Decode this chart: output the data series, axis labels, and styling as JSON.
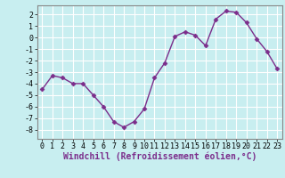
{
  "x": [
    0,
    1,
    2,
    3,
    4,
    5,
    6,
    7,
    8,
    9,
    10,
    11,
    12,
    13,
    14,
    15,
    16,
    17,
    18,
    19,
    20,
    21,
    22,
    23
  ],
  "y": [
    -4.5,
    -3.3,
    -3.5,
    -4.0,
    -4.0,
    -5.0,
    -6.0,
    -7.3,
    -7.8,
    -7.3,
    -6.2,
    -3.5,
    -2.2,
    0.1,
    0.5,
    0.2,
    -0.7,
    1.6,
    2.3,
    2.2,
    1.3,
    -0.1,
    -1.2,
    -2.7
  ],
  "line_color": "#7B2D8B",
  "marker": "D",
  "marker_size": 2.5,
  "xlabel": "Windchill (Refroidissement éolien,°C)",
  "xlabel_fontsize": 7,
  "bg_color": "#c8eef0",
  "grid_color": "#ffffff",
  "ylim": [
    -8.8,
    2.8
  ],
  "xlim": [
    -0.5,
    23.5
  ],
  "yticks": [
    -8,
    -7,
    -6,
    -5,
    -4,
    -3,
    -2,
    -1,
    0,
    1,
    2
  ],
  "xticks": [
    0,
    1,
    2,
    3,
    4,
    5,
    6,
    7,
    8,
    9,
    10,
    11,
    12,
    13,
    14,
    15,
    16,
    17,
    18,
    19,
    20,
    21,
    22,
    23
  ],
  "tick_fontsize": 6,
  "line_width": 1.0,
  "xlabel_color": "#7B2D8B",
  "xlabel_bold": true
}
